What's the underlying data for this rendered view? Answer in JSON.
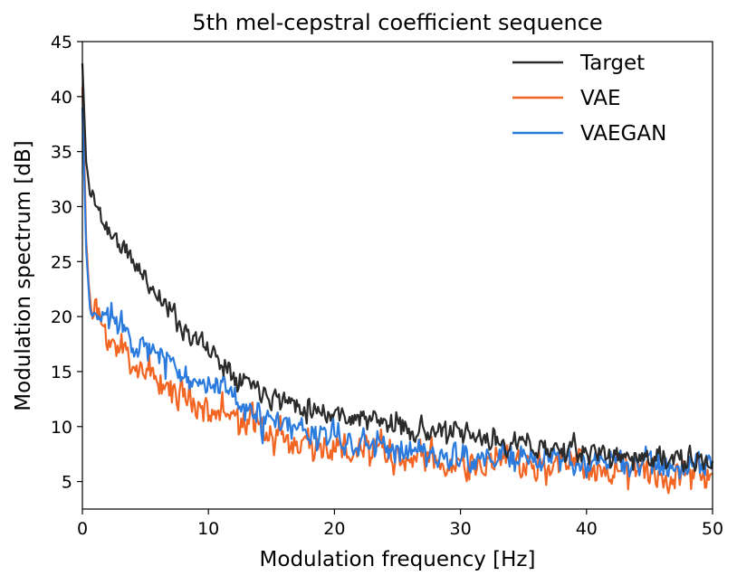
{
  "chart_data": {
    "type": "line",
    "title": "5th mel-cepstral coefficient sequence",
    "xlabel": "Modulation frequency [Hz]",
    "ylabel": "Modulation spectrum [dB]",
    "xlim": [
      0,
      50
    ],
    "ylim": [
      2.5,
      45
    ],
    "xticks": [
      0,
      10,
      20,
      30,
      40,
      50
    ],
    "yticks": [
      5,
      10,
      15,
      20,
      25,
      30,
      35,
      40,
      45
    ],
    "xtick_labels": [
      "0",
      "10",
      "20",
      "30",
      "40",
      "50"
    ],
    "ytick_labels": [
      "5",
      "10",
      "15",
      "20",
      "25",
      "30",
      "35",
      "40",
      "45"
    ],
    "grid": false,
    "legend_position": "top-right",
    "sample_spacing_hz": 0.1,
    "series": [
      {
        "name": "Target",
        "color": "#2b2b2b",
        "anchors": {
          "x": [
            0,
            0.1,
            0.3,
            0.6,
            1,
            1.5,
            2,
            3,
            4,
            5,
            6,
            7,
            8,
            9,
            10,
            11,
            12,
            13,
            14,
            15,
            16,
            18,
            20,
            22,
            24,
            26,
            28,
            30,
            32,
            34,
            36,
            38,
            40,
            42,
            44,
            46,
            48,
            50
          ],
          "y": [
            43,
            40,
            34,
            31.5,
            30.5,
            29,
            28,
            26.5,
            25,
            23.5,
            22,
            20.5,
            19,
            18,
            17,
            16,
            15,
            14.3,
            13.6,
            13,
            12.4,
            11.8,
            11.2,
            10.8,
            10.3,
            9.9,
            9.5,
            9.2,
            8.8,
            8.5,
            8.2,
            7.9,
            7.6,
            7.4,
            7.2,
            7.0,
            6.8,
            6.6
          ]
        },
        "noise_db": 0.8
      },
      {
        "name": "VAE",
        "color": "#f26522",
        "anchors": {
          "x": [
            0,
            0.1,
            0.3,
            0.6,
            1,
            1.5,
            2,
            3,
            4,
            5,
            6,
            7,
            8,
            9,
            10,
            11,
            12,
            13,
            14,
            15,
            16,
            18,
            20,
            22,
            24,
            26,
            28,
            30,
            32,
            34,
            36,
            38,
            40,
            42,
            44,
            46,
            48,
            50
          ],
          "y": [
            41,
            37,
            27,
            21,
            19.8,
            19,
            18.3,
            17,
            16,
            15.2,
            14.3,
            13.5,
            12.8,
            12.3,
            11.8,
            11.3,
            10.8,
            10.3,
            9.8,
            9.4,
            9.0,
            8.5,
            8.0,
            7.7,
            7.4,
            7.1,
            6.8,
            6.6,
            6.6,
            6.5,
            6.5,
            6.4,
            6.4,
            6.3,
            6.2,
            6.0,
            5.8,
            5.6
          ]
        },
        "noise_db": 1.2
      },
      {
        "name": "VAEGAN",
        "color": "#2b7bde",
        "anchors": {
          "x": [
            0,
            0.1,
            0.3,
            0.6,
            1,
            1.5,
            2,
            3,
            4,
            5,
            6,
            7,
            8,
            9,
            10,
            11,
            12,
            13,
            14,
            15,
            16,
            18,
            20,
            22,
            24,
            26,
            28,
            30,
            32,
            34,
            36,
            38,
            40,
            42,
            44,
            46,
            48,
            50
          ],
          "y": [
            39,
            35,
            26,
            20.5,
            20,
            20,
            20,
            20,
            18,
            17,
            16.3,
            15.7,
            15.0,
            14.4,
            13.8,
            13.2,
            12.3,
            11.5,
            10.8,
            10.3,
            9.9,
            9.4,
            8.9,
            8.5,
            8.1,
            7.8,
            7.5,
            7.2,
            7.1,
            7.0,
            7.0,
            6.9,
            6.8,
            6.7,
            6.6,
            6.5,
            6.4,
            6.3
          ]
        },
        "noise_db": 1.0
      }
    ]
  }
}
